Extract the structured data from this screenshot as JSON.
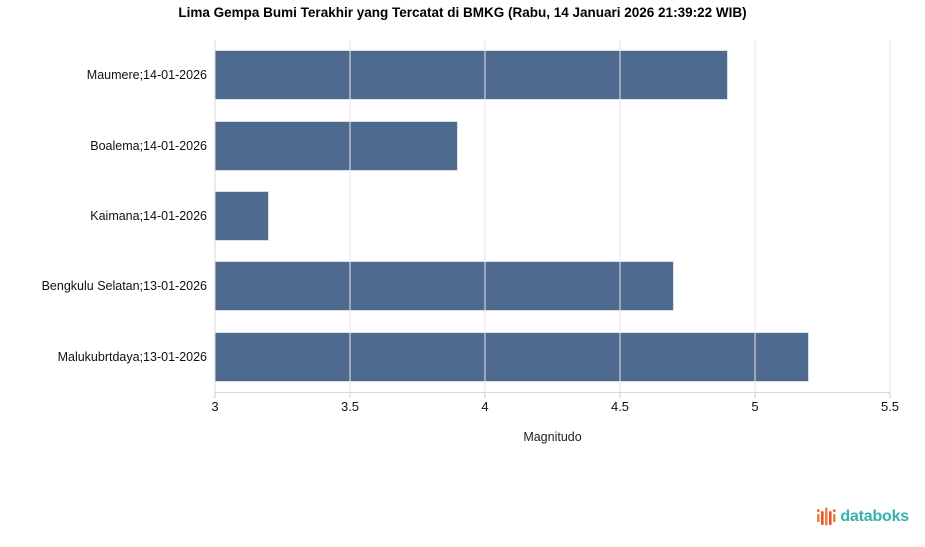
{
  "chart_data": {
    "type": "bar",
    "orientation": "horizontal",
    "title": "Lima Gempa Bumi Terakhir yang Tercatat di BMKG (Rabu, 14 Januari 2026 21:39:22 WIB)",
    "categories": [
      "Maumere;14-01-2026",
      "Boalema;14-01-2026",
      "Kaimana;14-01-2026",
      "Bengkulu Selatan;13-01-2026",
      "Malukubrtdaya;13-01-2026"
    ],
    "values": [
      4.9,
      3.9,
      3.2,
      4.7,
      5.2
    ],
    "xlabel": "Magnitudo",
    "ylabel": "",
    "xlim": [
      3,
      5.5
    ],
    "xticks": [
      3,
      3.5,
      4,
      4.5,
      5,
      5.5
    ],
    "grid": "vertical",
    "legend": "none",
    "bar_color": "#4e6a8e"
  },
  "branding": {
    "logo_text": "databoks",
    "logo_color": "#36b1ad",
    "logo_icon": "bar-pulse-icon",
    "icon_colors": [
      "#f0813c",
      "#e8502f"
    ]
  }
}
